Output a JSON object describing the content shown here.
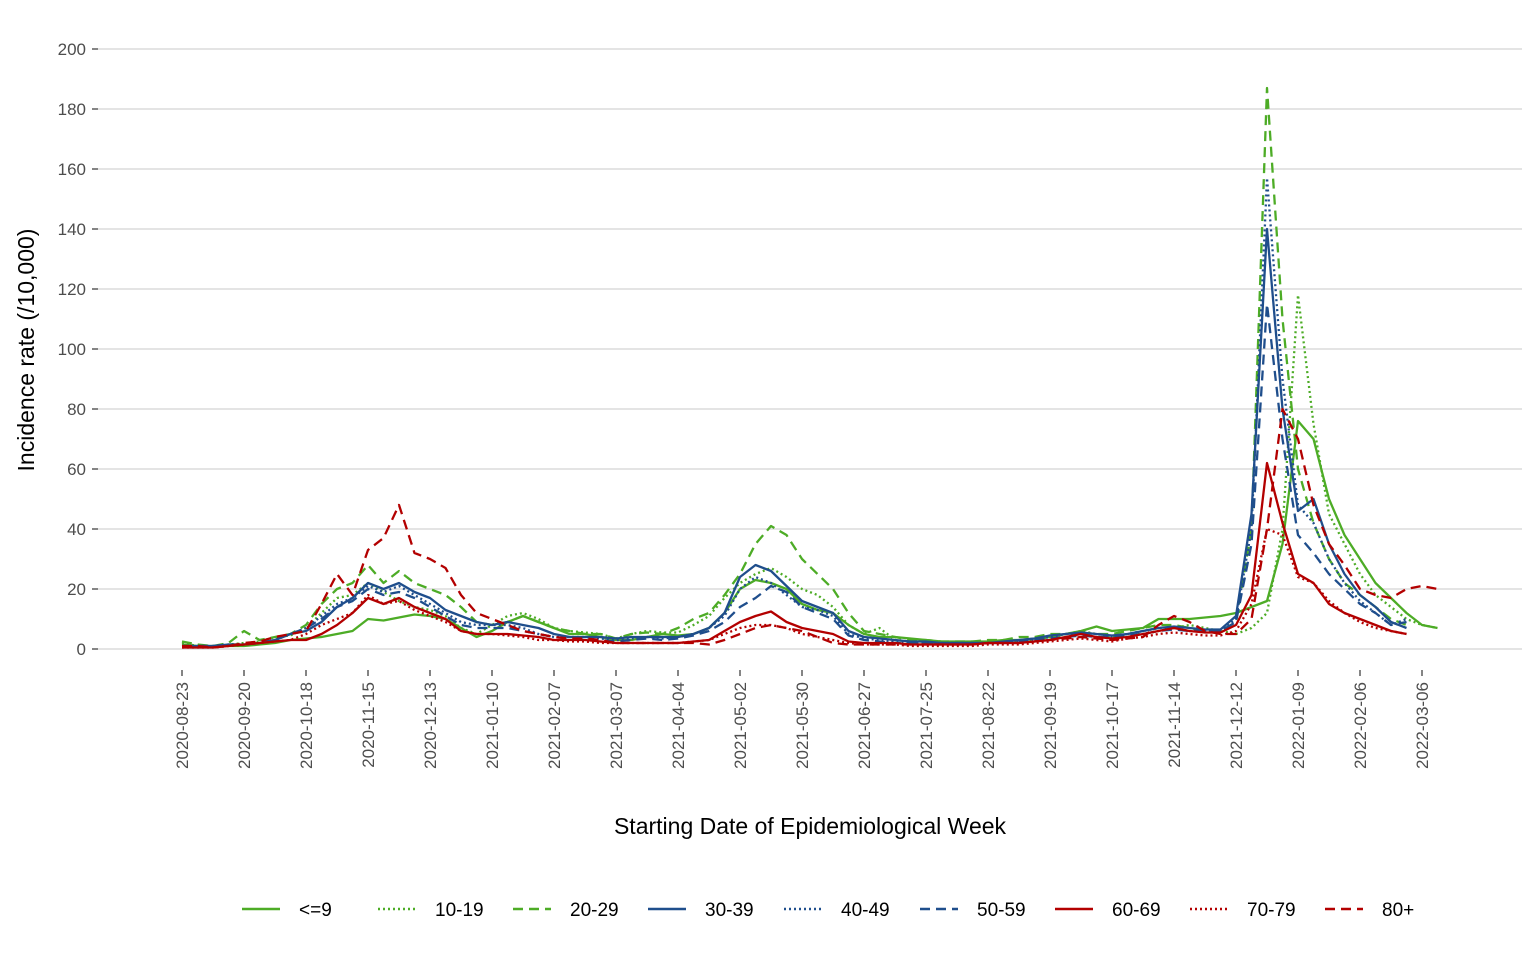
{
  "chart_data": {
    "type": "line",
    "xlabel": "Starting Date of Epidemiological Week",
    "ylabel": "Incidence rate (/10,000)",
    "ylim": [
      -7,
      203
    ],
    "yticks": [
      0,
      20,
      40,
      60,
      80,
      100,
      120,
      140,
      160,
      180,
      200
    ],
    "grid": "horizontal",
    "legend_position": "bottom",
    "x_tick_labels": [
      "2020-08-23",
      "2020-09-20",
      "2020-10-18",
      "2020-11-15",
      "2020-12-13",
      "2021-01-10",
      "2021-02-07",
      "2021-03-07",
      "2021-04-04",
      "2021-05-02",
      "2021-05-30",
      "2021-06-27",
      "2021-07-25",
      "2021-08-22",
      "2021-09-19",
      "2021-10-17",
      "2021-11-14",
      "2021-12-12",
      "2022-01-09",
      "2022-02-06",
      "2022-03-06"
    ],
    "weeks": [
      "2020-08-23",
      "2020-08-30",
      "2020-09-06",
      "2020-09-13",
      "2020-09-20",
      "2020-09-27",
      "2020-10-04",
      "2020-10-11",
      "2020-10-18",
      "2020-10-25",
      "2020-11-01",
      "2020-11-08",
      "2020-11-15",
      "2020-11-22",
      "2020-11-29",
      "2020-12-06",
      "2020-12-13",
      "2020-12-20",
      "2020-12-27",
      "2021-01-03",
      "2021-01-10",
      "2021-01-17",
      "2021-01-24",
      "2021-01-31",
      "2021-02-07",
      "2021-02-14",
      "2021-02-21",
      "2021-02-28",
      "2021-03-07",
      "2021-03-14",
      "2021-03-21",
      "2021-03-28",
      "2021-04-04",
      "2021-04-11",
      "2021-04-18",
      "2021-04-25",
      "2021-05-02",
      "2021-05-09",
      "2021-05-16",
      "2021-05-23",
      "2021-05-30",
      "2021-06-06",
      "2021-06-13",
      "2021-06-20",
      "2021-06-27",
      "2021-07-04",
      "2021-07-11",
      "2021-07-18",
      "2021-07-25",
      "2021-08-01",
      "2021-08-08",
      "2021-08-15",
      "2021-08-22",
      "2021-08-29",
      "2021-09-05",
      "2021-09-12",
      "2021-09-19",
      "2021-09-26",
      "2021-10-03",
      "2021-10-10",
      "2021-10-17",
      "2021-10-24",
      "2021-10-31",
      "2021-11-07",
      "2021-11-14",
      "2021-11-21",
      "2021-11-28",
      "2021-12-05",
      "2021-12-12",
      "2021-12-19",
      "2021-12-26",
      "2022-01-02",
      "2022-01-09",
      "2022-01-16",
      "2022-01-23",
      "2022-01-30",
      "2022-02-06",
      "2022-02-13",
      "2022-02-20",
      "2022-02-27",
      "2022-03-06",
      "2022-03-13"
    ],
    "series": [
      {
        "name": "<=9",
        "color": "#4dac26",
        "dash": "solid",
        "values": [
          1.5,
          1,
          1,
          1,
          1,
          1.5,
          2,
          3,
          3.5,
          4,
          5,
          6,
          10,
          9.5,
          10.5,
          11.5,
          11,
          10,
          7,
          4,
          6,
          9,
          11,
          9,
          7,
          5,
          5,
          4,
          3,
          3,
          4,
          5,
          4.5,
          5,
          7,
          12,
          20,
          23,
          22,
          20,
          15,
          13,
          12,
          8,
          5,
          4,
          4,
          3.5,
          3,
          2.5,
          2.5,
          2.5,
          2.5,
          3,
          3,
          3.5,
          4,
          5,
          6,
          7.5,
          6,
          6.5,
          7,
          10,
          10,
          10,
          10.5,
          11,
          12,
          14,
          16,
          35,
          76,
          70,
          50,
          38,
          30,
          22,
          17,
          12,
          8,
          7
        ]
      },
      {
        "name": "10-19",
        "color": "#4dac26",
        "dash": "dot",
        "values": [
          2,
          1,
          1,
          1.5,
          2,
          2.5,
          4,
          4.5,
          7,
          12,
          17,
          18,
          22,
          19,
          16,
          14,
          13,
          11,
          7,
          5,
          8,
          11,
          12,
          10,
          7,
          6,
          5.5,
          5,
          3.5,
          5,
          6,
          5.5,
          5.5,
          8,
          11,
          17,
          22,
          25,
          27,
          24,
          20,
          18,
          14,
          8,
          5,
          7,
          3,
          2.5,
          2.5,
          2,
          2,
          2,
          2,
          2.5,
          2.5,
          3,
          4,
          5,
          6,
          5,
          4,
          5,
          5,
          6,
          7,
          8,
          7,
          6,
          5,
          7,
          12,
          40,
          118,
          75,
          45,
          35,
          25,
          18,
          14,
          10,
          8,
          7
        ]
      },
      {
        "name": "20-29",
        "color": "#4dac26",
        "dash": "dash",
        "values": [
          2.5,
          1.5,
          1,
          2,
          6,
          3,
          4,
          5,
          8,
          15,
          20,
          22,
          28,
          22,
          26,
          22,
          20,
          18,
          14,
          9,
          8,
          9,
          11,
          9,
          7,
          6,
          5,
          5,
          3.5,
          5,
          5.5,
          5,
          7,
          10,
          12,
          18,
          25,
          35,
          41,
          38,
          30,
          25,
          20,
          12,
          6,
          5,
          4,
          3,
          3,
          2.5,
          2.5,
          2.5,
          3,
          3,
          4,
          4,
          5,
          5,
          5.5,
          5,
          5,
          6,
          7,
          8,
          8,
          7,
          6,
          6,
          9,
          40,
          187,
          110,
          60,
          42,
          30,
          22,
          18,
          14,
          10,
          8
        ]
      },
      {
        "name": "30-39",
        "color": "#1f4e8c",
        "dash": "solid",
        "values": [
          1,
          1,
          1,
          1.5,
          1.5,
          2,
          3,
          5,
          6,
          9,
          14,
          17,
          22,
          20,
          22,
          19,
          17,
          13,
          11,
          9,
          8,
          9,
          8,
          7,
          5,
          4,
          4,
          4,
          3.5,
          4,
          4,
          4,
          4,
          5,
          7,
          12,
          24,
          28,
          26,
          21,
          16,
          14,
          12,
          6,
          4,
          3.5,
          3,
          2.5,
          2.5,
          2,
          2,
          2,
          2,
          2.5,
          3,
          3.5,
          4.5,
          5,
          5.5,
          5,
          4.5,
          5,
          6,
          7,
          7.5,
          7,
          6.5,
          6.5,
          11,
          45,
          140,
          80,
          46,
          50,
          35,
          25,
          18,
          14,
          9,
          7
        ]
      },
      {
        "name": "40-49",
        "color": "#1f4e8c",
        "dash": "dot",
        "values": [
          1,
          1,
          1,
          1.5,
          1.5,
          2,
          3,
          5,
          7,
          11,
          15,
          17,
          21,
          19,
          21,
          18,
          15,
          12,
          9,
          8,
          8,
          8,
          7,
          5,
          4,
          4,
          4,
          3.5,
          3,
          3.5,
          4,
          3.5,
          4,
          5,
          7,
          11,
          20,
          24,
          22,
          18,
          14,
          13,
          11,
          5,
          3.5,
          3,
          2.5,
          2,
          2,
          2,
          2,
          2,
          2,
          2,
          2.5,
          3,
          4,
          5,
          5,
          4,
          4,
          5,
          6,
          7,
          7,
          6,
          6,
          6,
          10,
          40,
          157,
          90,
          48,
          42,
          30,
          22,
          16,
          12,
          8,
          10
        ]
      },
      {
        "name": "50-59",
        "color": "#1f4e8c",
        "dash": "dash",
        "values": [
          1,
          1,
          1,
          1.5,
          1.5,
          2,
          3,
          5,
          7,
          10,
          14,
          16,
          20,
          18,
          19,
          17,
          14,
          11,
          8,
          7,
          7,
          7,
          6,
          5,
          4,
          3.5,
          3.5,
          3,
          2.5,
          3,
          3.5,
          3,
          3.5,
          4.5,
          6,
          9,
          14,
          17,
          21,
          19,
          14,
          12,
          10,
          4.5,
          3,
          2.5,
          2,
          2,
          2,
          2,
          2,
          2,
          2,
          2,
          2.5,
          3,
          3.5,
          4,
          4.5,
          4,
          4,
          4.5,
          5,
          6,
          6.5,
          6,
          6,
          6,
          9,
          35,
          115,
          70,
          38,
          32,
          25,
          20,
          15,
          12,
          8,
          9
        ]
      },
      {
        "name": "60-69",
        "color": "#b30000",
        "dash": "solid",
        "values": [
          0.5,
          0.5,
          0.5,
          1,
          1.5,
          2,
          2.5,
          3,
          3,
          5,
          8,
          12,
          17,
          15,
          17,
          14,
          12,
          10,
          6,
          5,
          5,
          5,
          4.5,
          4,
          3,
          3,
          3,
          2.5,
          2,
          2,
          2,
          2,
          2,
          2.5,
          3,
          6,
          9,
          11,
          12.5,
          9,
          7,
          6,
          5,
          2.5,
          2,
          2,
          2,
          1.5,
          1.5,
          1.5,
          1.5,
          1.5,
          2,
          2,
          2,
          2.5,
          3,
          4,
          5,
          4,
          3.5,
          4,
          5,
          6,
          7,
          6,
          5.5,
          5.5,
          8,
          18,
          62,
          42,
          25,
          22,
          15,
          12,
          10,
          8,
          6,
          5
        ]
      },
      {
        "name": "70-79",
        "color": "#b30000",
        "dash": "dot",
        "values": [
          0.5,
          0.5,
          0.5,
          1,
          1.5,
          2,
          2.5,
          3,
          5,
          8,
          10,
          12,
          18,
          15,
          16,
          13,
          11,
          9,
          6,
          5,
          5,
          4.5,
          4,
          3,
          3,
          2.5,
          2.5,
          2,
          2,
          2,
          2,
          2,
          2,
          2.5,
          3,
          5,
          7,
          8,
          8,
          7,
          5,
          4,
          3,
          2,
          1.5,
          1.5,
          1.5,
          1,
          1,
          1,
          1,
          1,
          1.5,
          1.5,
          1.5,
          2,
          2.5,
          3,
          3.5,
          3,
          2.5,
          3.5,
          4,
          5,
          5.5,
          5,
          4.5,
          4.5,
          6,
          15,
          40,
          38,
          24,
          22,
          16,
          12,
          9,
          7,
          6,
          5
        ]
      },
      {
        "name": "80+",
        "color": "#b30000",
        "dash": "dash",
        "values": [
          1,
          1,
          0.5,
          1,
          2,
          2.5,
          4,
          5,
          6,
          15,
          25,
          18,
          33,
          37,
          48,
          32,
          30,
          27,
          18,
          12,
          10,
          8,
          6,
          5,
          4,
          3.5,
          3.5,
          3,
          2,
          2,
          2,
          2,
          2,
          2,
          1.5,
          3,
          5,
          7,
          8,
          7,
          6,
          4,
          2,
          1.5,
          1.5,
          1.5,
          1.5,
          1.5,
          1.5,
          1.5,
          1.5,
          1.5,
          2,
          2,
          2,
          2.5,
          3,
          3.5,
          4,
          3.5,
          3,
          3.5,
          4,
          8,
          11,
          9,
          6,
          5,
          5,
          10,
          40,
          80,
          70,
          48,
          35,
          28,
          20,
          18,
          17,
          20,
          21,
          20
        ]
      }
    ]
  }
}
